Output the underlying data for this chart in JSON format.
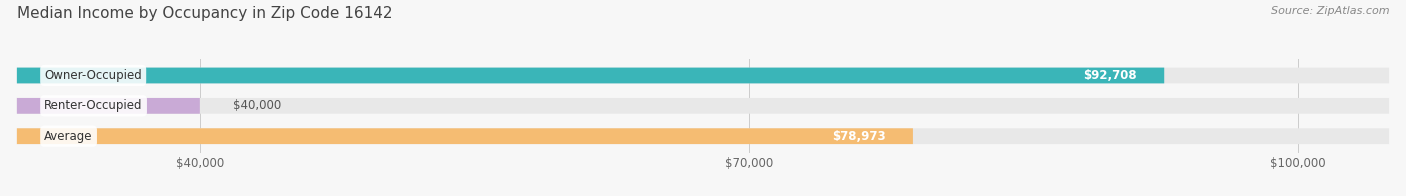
{
  "title": "Median Income by Occupancy in Zip Code 16142",
  "source": "Source: ZipAtlas.com",
  "categories": [
    "Owner-Occupied",
    "Renter-Occupied",
    "Average"
  ],
  "values": [
    92708,
    40000,
    78973
  ],
  "bar_colors": [
    "#3ab5b8",
    "#c9aad6",
    "#f5bc72"
  ],
  "bar_bg_color": "#e8e8e8",
  "label_values": [
    "$92,708",
    "$40,000",
    "$78,973"
  ],
  "xmin": 30000,
  "xmax": 105000,
  "xticks": [
    40000,
    70000,
    100000
  ],
  "xtick_labels": [
    "$40,000",
    "$70,000",
    "$100,000"
  ],
  "title_fontsize": 11,
  "source_fontsize": 8,
  "cat_fontsize": 8.5,
  "val_fontsize": 8.5,
  "background_color": "#f7f7f7",
  "bar_height": 0.52
}
